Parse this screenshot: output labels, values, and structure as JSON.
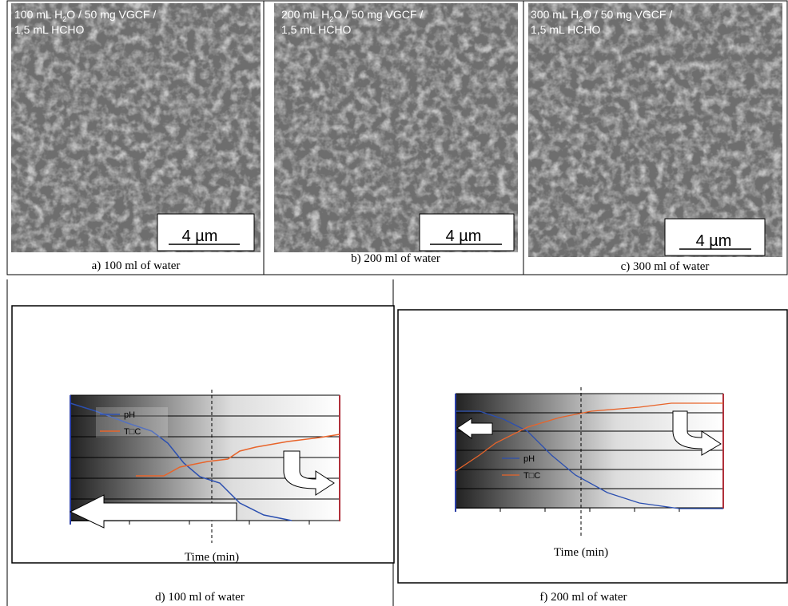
{
  "panels": [
    {
      "overlay": {
        "prefix": "100 mL H",
        "sub": "2",
        "suffix": "O / 50 mg VGCF /",
        "line2": "1,5 mL HCHO"
      },
      "scale_bar": "4 µm",
      "caption": "a) 100 ml of water"
    },
    {
      "overlay": {
        "prefix": "200 mL H",
        "sub": "2",
        "suffix": "O / 50 mg VGCF /",
        "line2": "1,5 mL HCHO"
      },
      "scale_bar": "4 µm",
      "caption": "b) 200 ml of water"
    },
    {
      "overlay": {
        "prefix": "300 mL H",
        "sub": "2",
        "suffix": "O / 50 mg VGCF /",
        "line2": "1,5 mL HCHO"
      },
      "scale_bar": "4 µm",
      "caption": "c) 300 ml of water"
    }
  ],
  "plots": [
    {
      "legend": [
        "pH",
        "T□C"
      ],
      "x_label": "Time (min)",
      "caption": "d) 100 ml of water"
    },
    {
      "legend": [
        "pH",
        "T□C"
      ],
      "x_label": "Time (min)",
      "caption": "f) 200 ml of water"
    }
  ]
}
